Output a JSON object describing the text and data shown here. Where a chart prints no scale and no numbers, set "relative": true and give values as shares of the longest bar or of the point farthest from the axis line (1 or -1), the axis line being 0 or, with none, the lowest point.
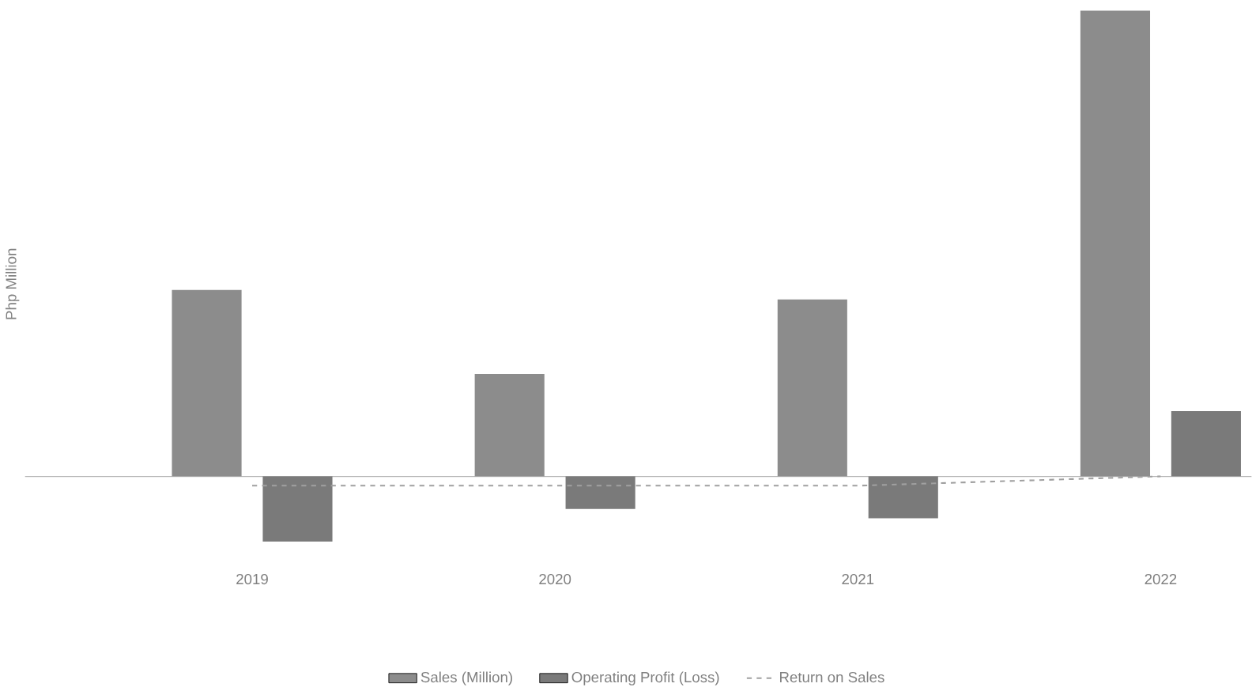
{
  "chart_data": {
    "type": "bar",
    "ylabel": "Php Million",
    "categories": [
      "2019",
      "2020",
      "2021",
      "2022"
    ],
    "relative": true,
    "legend": "bottom",
    "series": [
      {
        "name": "Sales (Million)",
        "color": "#8c8c8c",
        "values": [
          0.4,
          0.22,
          0.38,
          1
        ]
      },
      {
        "name": "Operating Profit (Loss)",
        "color": "#7a7a7a",
        "values": [
          -0.14,
          -0.07,
          -0.09,
          0.14
        ]
      },
      {
        "name": "Return on Sales",
        "type": "line",
        "line_style": "dashed",
        "color": "#a0a0a0",
        "values": [
          -0.02,
          -0.02,
          -0.02,
          0.0
        ]
      }
    ]
  }
}
